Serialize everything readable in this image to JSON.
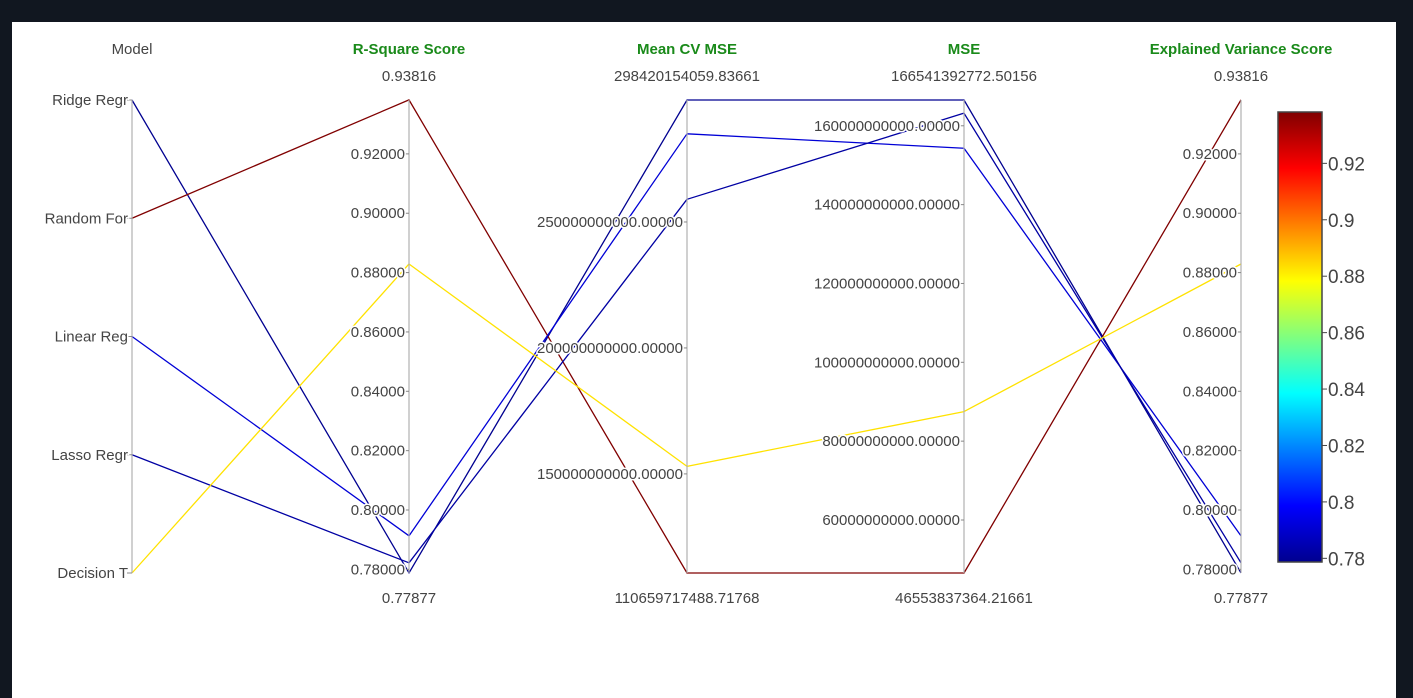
{
  "chart_data": {
    "type": "parcoords",
    "colorscale": "Jet",
    "color_range": [
      0.7787,
      0.9382
    ],
    "colorbar": {
      "tick_values": [
        0.78,
        0.8,
        0.82,
        0.84,
        0.86,
        0.88,
        0.9,
        0.92
      ],
      "tick_labels": [
        "0.78",
        "0.8",
        "0.82",
        "0.84",
        "0.86",
        "0.88",
        "0.9",
        "0.92"
      ]
    },
    "dimensions": [
      {
        "key": "model",
        "label": "Model",
        "kind": "categorical",
        "categories": [
          "Ridge Regr",
          "Random For",
          "Linear Reg",
          "Lasso Regr",
          "Decision T"
        ],
        "range": [
          0,
          4
        ],
        "tick_values": [
          0,
          1,
          2,
          3,
          4
        ],
        "tick_labels": [
          "Ridge Regr",
          "Random For",
          "Linear Reg",
          "Lasso Regr",
          "Decision T"
        ],
        "reversed": true
      },
      {
        "key": "r2",
        "label": "R-Square Score",
        "range": [
          0.77877,
          0.93816
        ],
        "range_labels": [
          "0.77877",
          "0.93816"
        ],
        "tick_values": [
          0.78,
          0.8,
          0.82,
          0.84,
          0.86,
          0.88,
          0.9,
          0.92
        ],
        "tick_labels": [
          "0.78000",
          "0.80000",
          "0.82000",
          "0.84000",
          "0.86000",
          "0.88000",
          "0.90000",
          "0.92000"
        ]
      },
      {
        "key": "cv_mse",
        "label": "Mean CV MSE",
        "range": [
          110659717488.71768,
          298420154059.8366
        ],
        "range_labels": [
          "110659717488.71768",
          "298420154059.83661"
        ],
        "tick_values": [
          150000000000,
          200000000000,
          250000000000
        ],
        "tick_labels": [
          "150000000000.00000",
          "200000000000.00000",
          "250000000000.00000"
        ]
      },
      {
        "key": "mse",
        "label": "MSE",
        "range": [
          46553837364.21661,
          166541392772.50156
        ],
        "range_labels": [
          "46553837364.21661",
          "166541392772.50156"
        ],
        "tick_values": [
          60000000000,
          80000000000,
          100000000000,
          120000000000,
          140000000000,
          160000000000
        ],
        "tick_labels": [
          "60000000000.00000",
          "80000000000.00000",
          "100000000000.00000",
          "120000000000.00000",
          "140000000000.00000",
          "160000000000.00000"
        ]
      },
      {
        "key": "evs",
        "label": "Explained Variance Score",
        "range": [
          0.77877,
          0.93816
        ],
        "range_labels": [
          "0.77877",
          "0.93816"
        ],
        "tick_values": [
          0.78,
          0.8,
          0.82,
          0.84,
          0.86,
          0.88,
          0.9,
          0.92
        ],
        "tick_labels": [
          "0.78000",
          "0.80000",
          "0.82000",
          "0.84000",
          "0.86000",
          "0.88000",
          "0.90000",
          "0.92000"
        ]
      }
    ],
    "rows": [
      {
        "model": 0,
        "r2": 0.7788,
        "cv_mse": 298420154059.84,
        "mse": 166541392772.5,
        "evs": 0.7788
      },
      {
        "model": 1,
        "r2": 0.9382,
        "cv_mse": 110659717488.72,
        "mse": 46553837364.22,
        "evs": 0.9382
      },
      {
        "model": 2,
        "r2": 0.7913,
        "cv_mse": 285000000000,
        "mse": 154300000000,
        "evs": 0.7913
      },
      {
        "model": 3,
        "r2": 0.7822,
        "cv_mse": 259000000000,
        "mse": 163200000000,
        "evs": 0.7822
      },
      {
        "model": 4,
        "r2": 0.8829,
        "cv_mse": 153000000000,
        "mse": 87500000000,
        "evs": 0.8829
      }
    ],
    "color_values": [
      0.7788,
      0.9382,
      0.7913,
      0.7822,
      0.8829
    ]
  }
}
